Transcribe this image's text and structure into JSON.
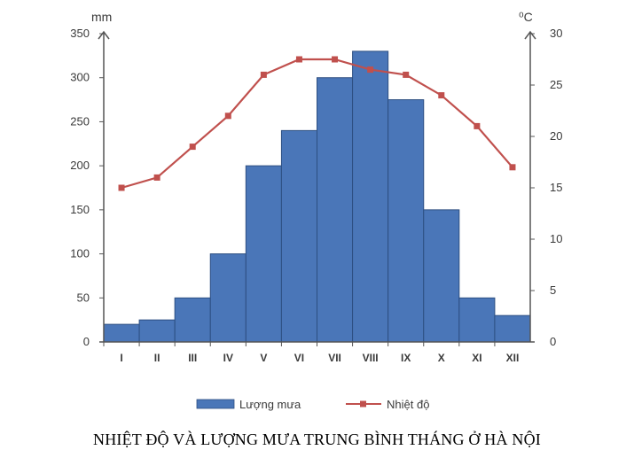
{
  "chart_data": {
    "type": "bar",
    "title": "NHIỆT ĐỘ VÀ LƯỢNG MƯA TRUNG BÌNH THÁNG Ở HÀ NỘI",
    "categories": [
      "I",
      "II",
      "III",
      "IV",
      "V",
      "VI",
      "VII",
      "VIII",
      "IX",
      "X",
      "XI",
      "XII"
    ],
    "series": [
      {
        "name": "Lượng mưa",
        "type": "bar",
        "axis": "left",
        "color": "#4a76b8",
        "values": [
          20,
          25,
          50,
          100,
          200,
          240,
          300,
          330,
          275,
          150,
          50,
          30
        ]
      },
      {
        "name": "Nhiệt độ",
        "type": "line",
        "axis": "right",
        "color": "#c0504d",
        "values": [
          15,
          16,
          19,
          22,
          26,
          27.5,
          27.5,
          26.5,
          26,
          24,
          21,
          17
        ]
      }
    ],
    "y_left": {
      "unit": "mm",
      "min": 0,
      "max": 350,
      "ticks": [
        0,
        50,
        100,
        150,
        200,
        250,
        300,
        350
      ]
    },
    "y_right": {
      "unit": "⁰C",
      "min": 0,
      "max": 30,
      "ticks": [
        0,
        5,
        10,
        15,
        20,
        25,
        30
      ]
    },
    "grid": false,
    "legend_position": "bottom"
  }
}
